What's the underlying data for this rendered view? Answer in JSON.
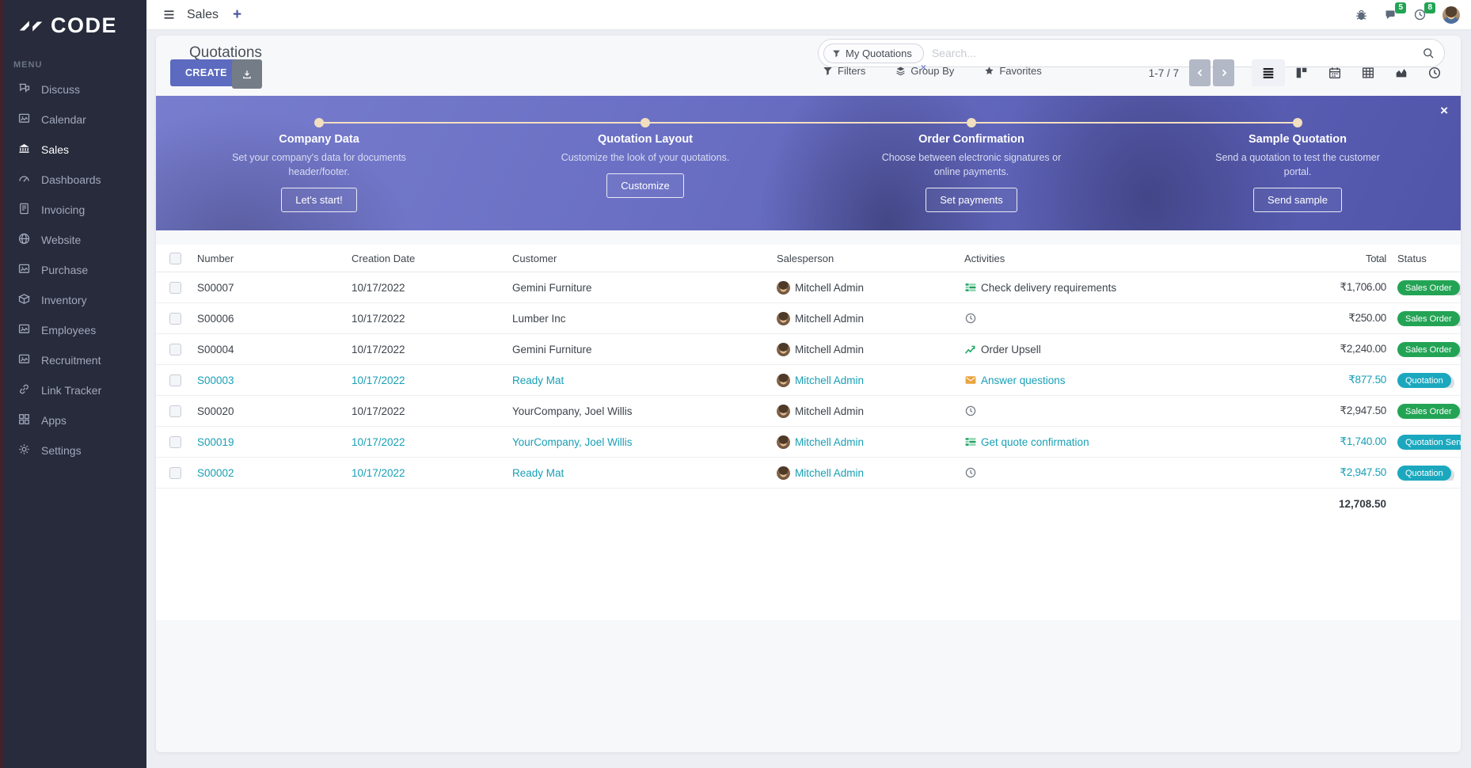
{
  "colors": {
    "accent": "#5c6bc0",
    "sidebar_bg": "#272b3b",
    "teal": "#179fb5",
    "badge_teal": "#1ba8be",
    "green": "#23a455",
    "cream": "#f2dfc0",
    "page_bg": "#eceef3"
  },
  "brand": {
    "logo_text": "CODE"
  },
  "topbar": {
    "app_name": "Sales",
    "new_tab_label": "+",
    "messages_badge": "5",
    "activities_badge": "8"
  },
  "sidebar": {
    "menu_label": "MENU",
    "items": [
      {
        "icon": "discuss-icon",
        "label": "Discuss",
        "active": false
      },
      {
        "icon": "calendar-icon",
        "label": "Calendar",
        "active": false
      },
      {
        "icon": "sales-icon",
        "label": "Sales",
        "active": true
      },
      {
        "icon": "dashboards-icon",
        "label": "Dashboards",
        "active": false
      },
      {
        "icon": "invoicing-icon",
        "label": "Invoicing",
        "active": false
      },
      {
        "icon": "website-icon",
        "label": "Website",
        "active": false
      },
      {
        "icon": "purchase-icon",
        "label": "Purchase",
        "active": false
      },
      {
        "icon": "inventory-icon",
        "label": "Inventory",
        "active": false
      },
      {
        "icon": "employees-icon",
        "label": "Employees",
        "active": false
      },
      {
        "icon": "recruitment-icon",
        "label": "Recruitment",
        "active": false
      },
      {
        "icon": "link-tracker-icon",
        "label": "Link Tracker",
        "active": false
      },
      {
        "icon": "apps-icon",
        "label": "Apps",
        "active": false
      },
      {
        "icon": "settings-icon",
        "label": "Settings",
        "active": false
      }
    ]
  },
  "control_panel": {
    "title": "Quotations",
    "create_label": "CREATE",
    "search": {
      "facet": "My Quotations",
      "facet_remove": "×",
      "placeholder": "Search..."
    },
    "filters_label": "Filters",
    "group_by_label": "Group By",
    "favorites_label": "Favorites",
    "pager_text": "1-7 / 7",
    "views": [
      "list",
      "kanban",
      "calendar",
      "pivot",
      "graph",
      "activity"
    ],
    "active_view": "list"
  },
  "onboarding": {
    "close_label": "×",
    "steps": [
      {
        "title": "Company Data",
        "description": "Set your company's data for documents header/footer.",
        "button": "Let's start!"
      },
      {
        "title": "Quotation Layout",
        "description": "Customize the look of your quotations.",
        "button": "Customize"
      },
      {
        "title": "Order Confirmation",
        "description": "Choose between electronic signatures or online payments.",
        "button": "Set payments"
      },
      {
        "title": "Sample Quotation",
        "description": "Send a quotation to test the customer portal.",
        "button": "Send sample"
      }
    ]
  },
  "table": {
    "columns": [
      "Number",
      "Creation Date",
      "Customer",
      "Salesperson",
      "Activities",
      "Total",
      "Status"
    ],
    "rows": [
      {
        "number": "S00007",
        "creation_date": "10/17/2022",
        "customer": "Gemini Furniture",
        "salesperson": "Mitchell Admin",
        "activity": {
          "icon": "tasks-icon",
          "label": "Check delivery requirements"
        },
        "total": "₹1,706.00",
        "status": "Sales Order",
        "status_type": "sales_order",
        "highlight": false
      },
      {
        "number": "S00006",
        "creation_date": "10/17/2022",
        "customer": "Lumber Inc",
        "salesperson": "Mitchell Admin",
        "activity": {
          "icon": "clock-icon",
          "label": ""
        },
        "total": "₹250.00",
        "status": "Sales Order",
        "status_type": "sales_order",
        "highlight": false
      },
      {
        "number": "S00004",
        "creation_date": "10/17/2022",
        "customer": "Gemini Furniture",
        "salesperson": "Mitchell Admin",
        "activity": {
          "icon": "chart-increase-icon",
          "label": "Order Upsell"
        },
        "total": "₹2,240.00",
        "status": "Sales Order",
        "status_type": "sales_order",
        "highlight": false
      },
      {
        "number": "S00003",
        "creation_date": "10/17/2022",
        "customer": "Ready Mat",
        "salesperson": "Mitchell Admin",
        "activity": {
          "icon": "envelope-icon",
          "label": "Answer questions"
        },
        "total": "₹877.50",
        "status": "Quotation",
        "status_type": "quotation",
        "highlight": true
      },
      {
        "number": "S00020",
        "creation_date": "10/17/2022",
        "customer": "YourCompany, Joel Willis",
        "salesperson": "Mitchell Admin",
        "activity": {
          "icon": "clock-icon",
          "label": ""
        },
        "total": "₹2,947.50",
        "status": "Sales Order",
        "status_type": "sales_order",
        "highlight": false
      },
      {
        "number": "S00019",
        "creation_date": "10/17/2022",
        "customer": "YourCompany, Joel Willis",
        "salesperson": "Mitchell Admin",
        "activity": {
          "icon": "tasks-icon",
          "label": "Get quote confirmation"
        },
        "total": "₹1,740.00",
        "status": "Quotation Sent",
        "status_type": "quotation_sent",
        "highlight": true
      },
      {
        "number": "S00002",
        "creation_date": "10/17/2022",
        "customer": "Ready Mat",
        "salesperson": "Mitchell Admin",
        "activity": {
          "icon": "clock-icon",
          "label": ""
        },
        "total": "₹2,947.50",
        "status": "Quotation",
        "status_type": "quotation",
        "highlight": true
      }
    ],
    "footer_total": "12,708.50"
  }
}
